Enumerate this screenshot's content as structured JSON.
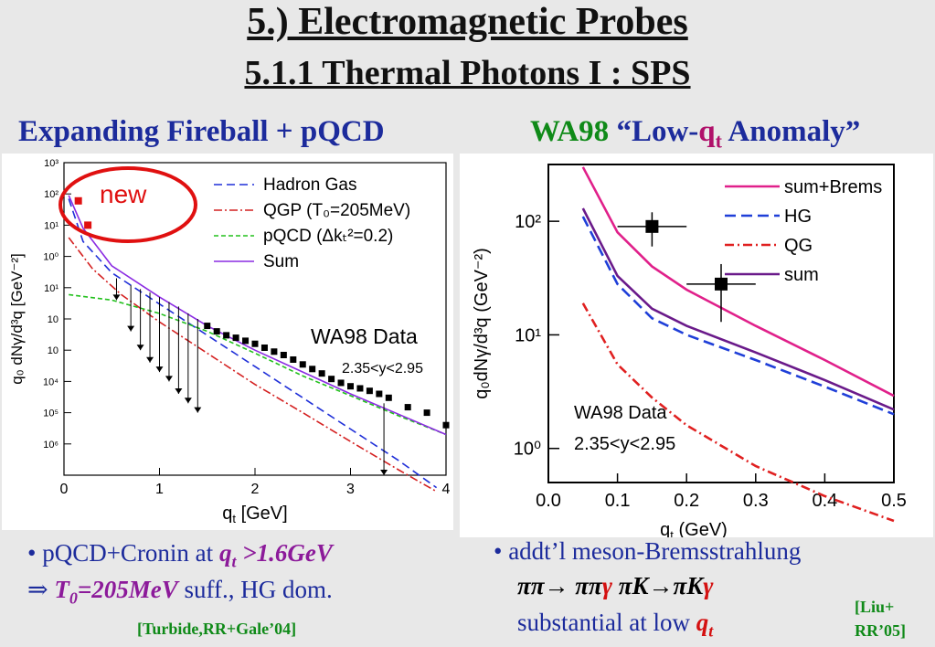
{
  "slide": {
    "title": "5.) Electromagnetic Probes",
    "subtitle": "5.1.1 Thermal Photons I : SPS",
    "left_heading": "Expanding Fireball + pQCD",
    "right_heading_prefix": "WA98",
    "right_heading_quote_open": "“Low-",
    "right_heading_q": "q",
    "right_heading_sub": "t",
    "right_heading_rest": " Anomaly”"
  },
  "left_text": {
    "line1_a": "• pQCD+Cronin at ",
    "line1_q": "q",
    "line1_qsub": "t",
    "line1_b": " >1.6GeV",
    "line2_arrow": "⇒ ",
    "line2_T": "T",
    "line2_Tsub": "0",
    "line2_b": "=205MeV",
    "line2_c": " suff., HG dom.",
    "citation": "[Turbide,RR+Gale’04]"
  },
  "right_text": {
    "line1": "• addt’l meson-Bremsstrahlung",
    "line2_a": "ππ→ ππ",
    "line2_g1": "γ",
    "line2_b": "  πK→πK",
    "line2_g2": "γ",
    "line3_a": "substantial at low ",
    "line3_q": "q",
    "line3_qsub": "t",
    "citation_1": "[Liu+",
    "citation_2": "RR’05]"
  },
  "chart_data": [
    {
      "type": "line",
      "xlim": [
        0,
        4
      ],
      "ylim_log10": [
        -7,
        3
      ],
      "log_y": true,
      "x_ticks": [
        0,
        1,
        2,
        3,
        4
      ],
      "y_tick_labels": [
        "10⁶",
        "10⁵",
        "10⁴",
        "10⁳",
        "10⁲",
        "10¹",
        "10⁰",
        "10¹",
        "10²",
        "10³"
      ],
      "xlabel": "q",
      "xlabel_sub": "t",
      "xlabel_unit": " [GeV]",
      "ylabel": "q₀ dNγ/d³q  [GeV⁻²]",
      "annotation_new": "new",
      "annotation_data": "WA98 Data",
      "annotation_rapidity": "2.35<y<2.95",
      "legend_position": "top-right",
      "series": [
        {
          "name": "Hadron Gas",
          "color": "#1f2fd8",
          "dash": "9,5",
          "x": [
            0.05,
            0.2,
            0.5,
            1.0,
            1.5,
            2.0,
            2.5,
            3.0,
            3.5,
            3.9
          ],
          "y": [
            70,
            3,
            0.3,
            0.03,
            0.003,
            0.0003,
            3e-05,
            3e-06,
            3e-07,
            4e-08
          ]
        },
        {
          "name": "QGP (T₀=205MeV)",
          "color": "#d42020",
          "dash": "9,3,2,3",
          "x": [
            0.05,
            0.3,
            0.6,
            1.0,
            1.5,
            2.0,
            2.5,
            3.0,
            3.5,
            3.9
          ],
          "y": [
            4,
            0.4,
            0.06,
            0.008,
            0.0008,
            8e-05,
            1e-05,
            1.2e-06,
            1.5e-07,
            3e-08
          ]
        },
        {
          "name": "pQCD (Δkₜ²=0.2)",
          "color": "#22c01c",
          "dash": "5,3",
          "x": [
            0.05,
            0.5,
            1.0,
            1.5,
            2.0,
            2.5,
            3.0,
            3.5,
            4.0
          ],
          "y": [
            0.06,
            0.04,
            0.015,
            0.004,
            0.0008,
            0.00015,
            3.5e-05,
            8e-06,
            2e-06
          ]
        },
        {
          "name": "Sum",
          "color": "#8a2be2",
          "dash": "",
          "x": [
            0.05,
            0.2,
            0.5,
            1.0,
            1.5,
            2.0,
            2.5,
            3.0,
            3.5,
            4.0
          ],
          "y": [
            90,
            8,
            0.5,
            0.05,
            0.006,
            0.001,
            0.0002,
            4e-05,
            9e-06,
            2e-06
          ]
        }
      ],
      "data_points_new": {
        "x": [
          0.15,
          0.25
        ],
        "y": [
          60,
          10
        ],
        "color": "#e01010"
      },
      "data_points": {
        "x": [
          1.5,
          1.6,
          1.7,
          1.8,
          1.9,
          2.0,
          2.1,
          2.2,
          2.3,
          2.4,
          2.5,
          2.6,
          2.7,
          2.8,
          2.9,
          3.0,
          3.1,
          3.2,
          3.3,
          3.4,
          3.6,
          3.8,
          4.0
        ],
        "y": [
          0.006,
          0.004,
          0.003,
          0.0025,
          0.002,
          0.0016,
          0.0012,
          0.0009,
          0.0007,
          0.0005,
          0.00035,
          0.00025,
          0.00018,
          0.00012,
          9e-05,
          7e-05,
          6e-05,
          5e-05,
          4e-05,
          3e-05,
          1.5e-05,
          1e-05,
          4e-06
        ]
      },
      "upper_limits": {
        "x": [
          0.55,
          0.7,
          0.8,
          0.9,
          1.0,
          1.1,
          1.2,
          1.3,
          1.4,
          3.35
        ],
        "y": [
          0.2,
          0.12,
          0.09,
          0.07,
          0.05,
          0.035,
          0.025,
          0.015,
          0.01,
          2e-05
        ],
        "y_tip": [
          0.04,
          0.004,
          0.001,
          0.0004,
          0.0002,
          0.0001,
          4e-05,
          2e-05,
          1e-05,
          1e-07
        ]
      }
    },
    {
      "type": "line",
      "xlim": [
        0,
        0.5
      ],
      "ylim_log10": [
        -0.3,
        2.5
      ],
      "log_y": true,
      "x_ticks": [
        0.0,
        0.1,
        0.2,
        0.3,
        0.4,
        0.5
      ],
      "x_tick_labels": [
        "0.0",
        "0.1",
        "0.2",
        "0.3",
        "0.4",
        "0.5"
      ],
      "y_ticks_log10": [
        0,
        1,
        2
      ],
      "y_tick_labels": [
        "10⁰",
        "10¹",
        "10²"
      ],
      "xlabel": "q",
      "xlabel_sub": "t",
      "xlabel_unit": " (GeV)",
      "ylabel": "q₀dNγ/d³q (GeV⁻²)",
      "annotation_data": "WA98 Data",
      "annotation_rapidity": "2.35<y<2.95",
      "legend_position": "top-right",
      "series": [
        {
          "name": "sum+Brems",
          "color": "#e0208a",
          "dash": "",
          "x": [
            0.05,
            0.1,
            0.15,
            0.2,
            0.3,
            0.4,
            0.5
          ],
          "y": [
            300,
            80,
            40,
            25,
            12,
            6,
            2.9
          ]
        },
        {
          "name": "HG",
          "color": "#1f3fd8",
          "dash": "12,6",
          "x": [
            0.05,
            0.1,
            0.15,
            0.2,
            0.3,
            0.4,
            0.5
          ],
          "y": [
            110,
            28,
            14,
            10,
            6,
            3.5,
            2.0
          ]
        },
        {
          "name": "QG",
          "color": "#e02020",
          "dash": "10,4,2,4",
          "x": [
            0.05,
            0.1,
            0.15,
            0.2,
            0.3,
            0.4,
            0.5
          ],
          "y": [
            19,
            5.5,
            2.8,
            1.6,
            0.7,
            0.38,
            0.23
          ]
        },
        {
          "name": "sum",
          "color": "#6a1a8a",
          "dash": "",
          "x": [
            0.05,
            0.1,
            0.15,
            0.2,
            0.3,
            0.4,
            0.5
          ],
          "y": [
            130,
            33,
            17,
            12,
            7,
            4,
            2.2
          ]
        }
      ],
      "data_points": {
        "x": [
          0.15,
          0.25
        ],
        "y": [
          90,
          28
        ],
        "xerr": [
          0.05,
          0.05
        ],
        "y_low": [
          60,
          13
        ],
        "y_high": [
          120,
          42
        ]
      }
    }
  ]
}
